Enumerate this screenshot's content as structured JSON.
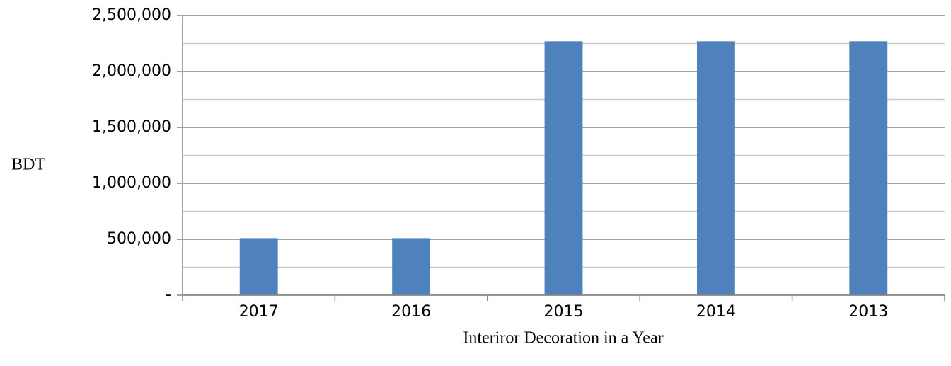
{
  "chart_data": {
    "type": "bar",
    "x_label": "Interiror Decoration in a Year",
    "y_label": "BDT",
    "categories": [
      "2017",
      "2016",
      "2015",
      "2014",
      "2013"
    ],
    "values": [
      510000,
      510000,
      2270000,
      2270000,
      2270000
    ],
    "color": "#4f81bd",
    "ylim": [
      0,
      2500000
    ],
    "yticks": [
      {
        "value": 0,
        "label": "-"
      },
      {
        "value": 500000,
        "label": "500,000"
      },
      {
        "value": 1000000,
        "label": "1,000,000"
      },
      {
        "value": 1500000,
        "label": "1,500,000"
      },
      {
        "value": 2000000,
        "label": "2,000,000"
      },
      {
        "value": 2500000,
        "label": "2,500,000"
      }
    ],
    "minor_yticks": [
      250000,
      750000,
      1250000,
      1750000,
      2250000
    ],
    "grid": true
  }
}
